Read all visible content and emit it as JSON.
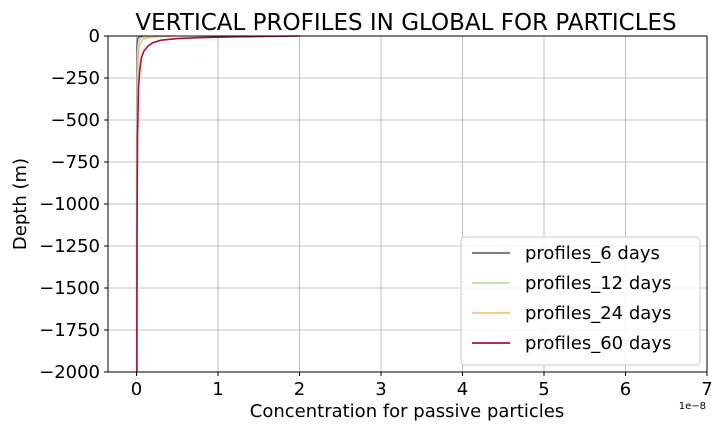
{
  "chart_data": {
    "type": "line",
    "title": "VERTICAL PROFILES IN GLOBAL FOR PARTICLES",
    "xlabel": "Concentration for passive particles",
    "ylabel": "Depth (m)",
    "x_offset_label": "1e−8",
    "x_scale": 1e-08,
    "xlim": [
      -0.35,
      7.0
    ],
    "ylim": [
      -2000,
      0
    ],
    "xticks": [
      0,
      1,
      2,
      3,
      4,
      5,
      6,
      7
    ],
    "xtick_labels": [
      "0",
      "1",
      "2",
      "3",
      "4",
      "5",
      "6",
      "7"
    ],
    "yticks": [
      0,
      -250,
      -500,
      -750,
      -1000,
      -1250,
      -1500,
      -1750,
      -2000
    ],
    "ytick_labels": [
      "0",
      "−250",
      "−500",
      "−750",
      "−1000",
      "−1250",
      "−1500",
      "−1750",
      "−2000"
    ],
    "grid": true,
    "legend_position": "lower-right",
    "series": [
      {
        "name": "profiles_6 days",
        "color": "#6a6494",
        "x": [
          0.08,
          0.04,
          0.02,
          0.012,
          0.006,
          0.004,
          0.003,
          0.002,
          0.002,
          0.002
        ],
        "y": [
          0,
          -5,
          -10,
          -20,
          -50,
          -100,
          -300,
          -700,
          -1500,
          -2000
        ]
      },
      {
        "name": "profiles_12 days",
        "color": "#b8e0a4",
        "x": [
          0.25,
          0.12,
          0.07,
          0.04,
          0.02,
          0.012,
          0.007,
          0.005,
          0.004,
          0.004
        ],
        "y": [
          0,
          -5,
          -10,
          -20,
          -50,
          -100,
          -300,
          -700,
          -1500,
          -2000
        ]
      },
      {
        "name": "profiles_24 days",
        "color": "#f6c27a",
        "x": [
          0.45,
          0.25,
          0.14,
          0.08,
          0.04,
          0.025,
          0.013,
          0.008,
          0.006,
          0.006
        ],
        "y": [
          0,
          -5,
          -10,
          -20,
          -50,
          -100,
          -300,
          -700,
          -1500,
          -2000
        ]
      },
      {
        "name": "profiles_60 days",
        "color": "#a0114b",
        "x": [
          2.0,
          1.2,
          0.75,
          0.5,
          0.3,
          0.2,
          0.14,
          0.09,
          0.06,
          0.04,
          0.025,
          0.012,
          0.006,
          0.004
        ],
        "y": [
          0,
          -5,
          -10,
          -15,
          -25,
          -40,
          -60,
          -90,
          -130,
          -200,
          -300,
          -600,
          -1200,
          -2000
        ]
      }
    ]
  }
}
